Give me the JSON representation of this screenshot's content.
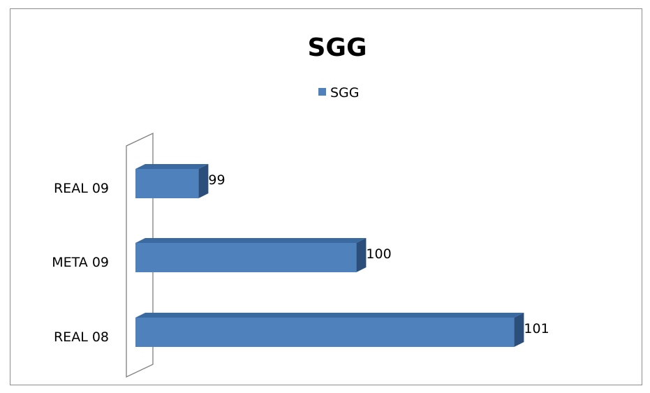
{
  "chart_data": {
    "type": "bar",
    "orientation": "horizontal",
    "title": "SGG",
    "categories": [
      "REAL 09",
      "META 09",
      "REAL 08"
    ],
    "series": [
      {
        "name": "SGG",
        "values": [
          99,
          100,
          101
        ]
      }
    ],
    "data_labels": true,
    "legend_position": "top",
    "grid": false,
    "style": "3d",
    "colors": {
      "bar_front": "#4f81bd",
      "bar_top": "#3b6aa0",
      "bar_side": "#2b4f7a"
    }
  }
}
